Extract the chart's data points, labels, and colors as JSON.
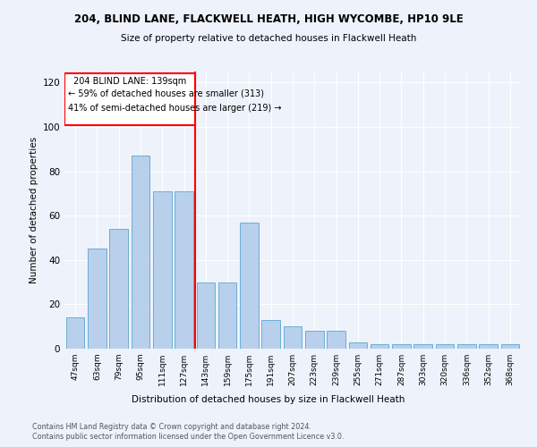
{
  "title1": "204, BLIND LANE, FLACKWELL HEATH, HIGH WYCOMBE, HP10 9LE",
  "title2": "Size of property relative to detached houses in Flackwell Heath",
  "xlabel": "Distribution of detached houses by size in Flackwell Heath",
  "ylabel": "Number of detached properties",
  "bar_labels": [
    "47sqm",
    "63sqm",
    "79sqm",
    "95sqm",
    "111sqm",
    "127sqm",
    "143sqm",
    "159sqm",
    "175sqm",
    "191sqm",
    "207sqm",
    "223sqm",
    "239sqm",
    "255sqm",
    "271sqm",
    "287sqm",
    "303sqm",
    "320sqm",
    "336sqm",
    "352sqm",
    "368sqm"
  ],
  "bar_values": [
    14,
    45,
    54,
    87,
    71,
    71,
    30,
    30,
    57,
    13,
    10,
    8,
    8,
    3,
    2,
    2,
    2,
    2,
    2,
    2,
    2
  ],
  "bar_color": "#b8d0eb",
  "bar_edge_color": "#6aaed6",
  "line_x_index": 5.5,
  "annotation_text1": "204 BLIND LANE: 139sqm",
  "annotation_text2": "← 59% of detached houses are smaller (313)",
  "annotation_text3": "41% of semi-detached houses are larger (219) →",
  "ylim": [
    0,
    125
  ],
  "yticks": [
    0,
    20,
    40,
    60,
    80,
    100,
    120
  ],
  "footnote1": "Contains HM Land Registry data © Crown copyright and database right 2024.",
  "footnote2": "Contains public sector information licensed under the Open Government Licence v3.0.",
  "bg_color": "#eef2fa"
}
